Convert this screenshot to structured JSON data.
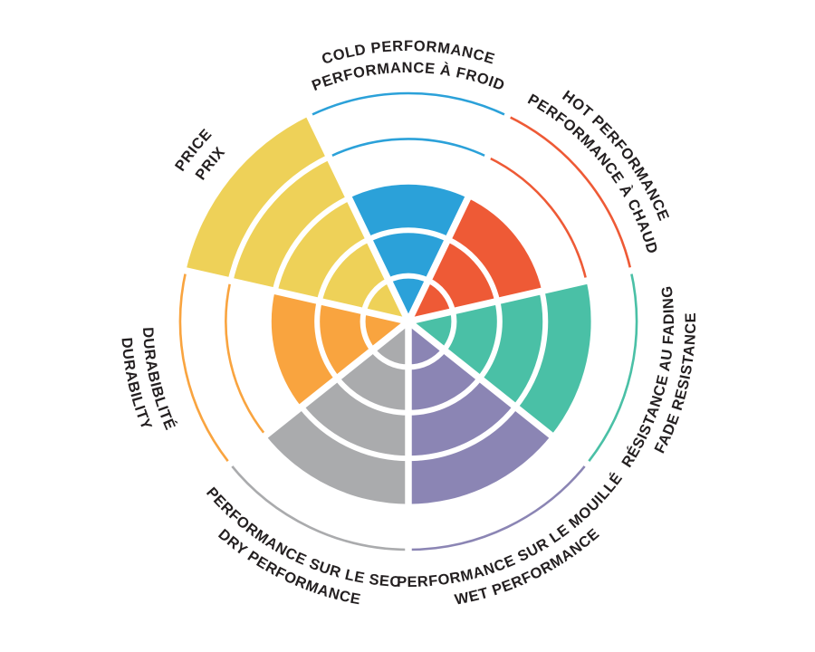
{
  "title": "",
  "chart_data": {
    "type": "polar_sector_bar",
    "description": "Seven-sector rose / radar chart of performance ratings, each sector filled from center to its rating level",
    "max_level": 5,
    "grid": "5 concentric ring levels; white radial separators between sectors; thin colored arcs mark unfilled ring levels above each sector's rating",
    "legend_position": "none",
    "background_color": "#ffffff",
    "label_color": "#231f20",
    "categories": [
      {
        "id": "cold-performance",
        "label_line1": "COLD PERFORMANCE",
        "label_line2": "PERFORMANCE À FROID",
        "value": 3,
        "color": "#2ba1d9",
        "label_flipped": false
      },
      {
        "id": "hot-performance",
        "label_line1": "HOT PERFORMANCE",
        "label_line2": "PERFORMANCE À CHAUD",
        "value": 3,
        "color": "#ee5a36",
        "label_flipped": false
      },
      {
        "id": "fade-resistance",
        "label_line1": "RÉSISTANCE AU FADING",
        "label_line2": "FADE RESISTANCE",
        "value": 4,
        "color": "#4ac0a6",
        "label_flipped": true
      },
      {
        "id": "wet-performance",
        "label_line1": "PERFORMANCE SUR LE MOUILLÉ",
        "label_line2": "WET PERFORMANCE",
        "value": 4,
        "color": "#8b85b4",
        "label_flipped": true
      },
      {
        "id": "dry-performance",
        "label_line1": "PERFORMANCE SUR LE SEC",
        "label_line2": "DRY PERFORMANCE",
        "value": 4,
        "color": "#aaabad",
        "label_flipped": true
      },
      {
        "id": "durability",
        "label_line1": "DURABIBLITÉ",
        "label_line2": "DURABILITY",
        "value": 3,
        "color": "#f9a43f",
        "label_flipped": true
      },
      {
        "id": "price",
        "label_line1": "PRICE",
        "label_line2": "PRIX",
        "value": 5,
        "color": "#eed158",
        "label_flipped": false
      }
    ]
  }
}
